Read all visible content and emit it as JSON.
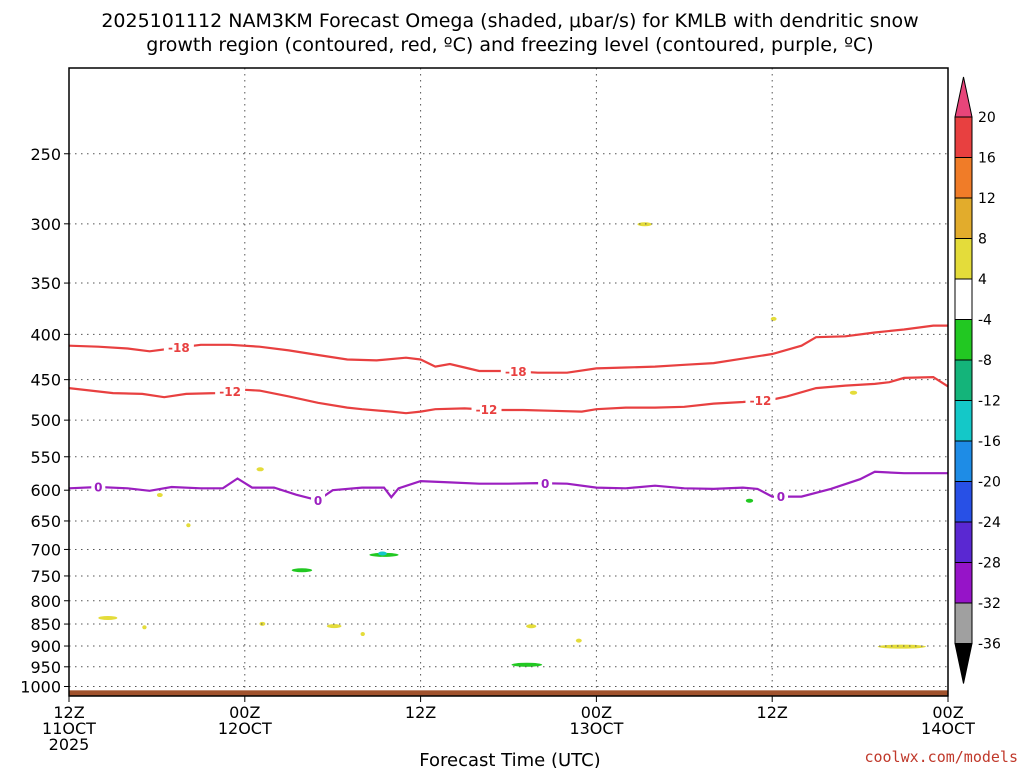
{
  "title_line1": "2025101112 NAM3KM Forecast Omega (shaded, μbar/s) for KMLB with dendritic snow",
  "title_line2": "growth region (contoured, red, ºC) and freezing level (contoured, purple, ºC)",
  "credit": "coolwx.com/models",
  "credit_color": "#c0392b",
  "chart_data": {
    "type": "heatmap",
    "xlabel": "Forecast Time (UTC)",
    "xlim": [
      0,
      60
    ],
    "x_unit": "forecast hours",
    "x_ticks": [
      {
        "x": 0,
        "line1": "12Z",
        "line2": "11OCT",
        "line3": "2025"
      },
      {
        "x": 12,
        "line1": "00Z",
        "line2": "12OCT",
        "line3": ""
      },
      {
        "x": 24,
        "line1": "12Z",
        "line2": "",
        "line3": ""
      },
      {
        "x": 36,
        "line1": "00Z",
        "line2": "13OCT",
        "line3": ""
      },
      {
        "x": 48,
        "line1": "12Z",
        "line2": "",
        "line3": ""
      },
      {
        "x": 60,
        "line1": "00Z",
        "line2": "14OCT",
        "line3": ""
      }
    ],
    "y_unit": "hPa",
    "y_scale": "log-pressure",
    "ylim": [
      1025,
      200
    ],
    "y_ticks": [
      250,
      300,
      350,
      400,
      450,
      500,
      550,
      600,
      650,
      700,
      750,
      800,
      850,
      900,
      950,
      1000
    ],
    "grid": true,
    "colorbar": {
      "labels": [
        "20",
        "16",
        "12",
        "8",
        "4",
        "-4",
        "-8",
        "-12",
        "-16",
        "-20",
        "-24",
        "-28",
        "-32",
        "-36"
      ],
      "colors": [
        "#e8457a",
        "#e84040",
        "#f07c28",
        "#e2ac2c",
        "#e4dc3a",
        "#ffffff",
        "#22c822",
        "#14b47a",
        "#14c8c8",
        "#1e8ce6",
        "#2850e6",
        "#5a28d2",
        "#9614c8",
        "#a0a0a0",
        "#000000"
      ]
    },
    "surface": {
      "pressure": 1010,
      "color": "#a0522d"
    },
    "series": [
      {
        "label": "-18",
        "color": "#e84040",
        "label_at": [
          7.5,
          30.5
        ],
        "points": [
          [
            0,
            412
          ],
          [
            2,
            413
          ],
          [
            4,
            415
          ],
          [
            5.5,
            418
          ],
          [
            7,
            415
          ],
          [
            9,
            411
          ],
          [
            11,
            411
          ],
          [
            13,
            413
          ],
          [
            15,
            417
          ],
          [
            17,
            422
          ],
          [
            19,
            427
          ],
          [
            21,
            428
          ],
          [
            23,
            425
          ],
          [
            24,
            427
          ],
          [
            25,
            435
          ],
          [
            26,
            432
          ],
          [
            27,
            436
          ],
          [
            28,
            440
          ],
          [
            30,
            440
          ],
          [
            32,
            442
          ],
          [
            34,
            442
          ],
          [
            36,
            437
          ],
          [
            38,
            436
          ],
          [
            40,
            435
          ],
          [
            42,
            433
          ],
          [
            44,
            431
          ],
          [
            46,
            426
          ],
          [
            48,
            421
          ],
          [
            50,
            412
          ],
          [
            51,
            403
          ],
          [
            53,
            402
          ],
          [
            55,
            398
          ],
          [
            57,
            395
          ],
          [
            59,
            391
          ],
          [
            60,
            391
          ]
        ]
      },
      {
        "label": "-12",
        "color": "#e84040",
        "label_at": [
          11,
          28.5,
          47.2
        ],
        "points": [
          [
            0,
            460
          ],
          [
            3,
            466
          ],
          [
            5,
            467
          ],
          [
            6.5,
            471
          ],
          [
            8,
            467
          ],
          [
            10,
            466
          ],
          [
            12,
            462
          ],
          [
            13,
            463
          ],
          [
            15,
            470
          ],
          [
            17,
            478
          ],
          [
            19,
            484
          ],
          [
            20,
            486
          ],
          [
            22,
            489
          ],
          [
            23,
            491
          ],
          [
            24,
            489
          ],
          [
            25,
            486
          ],
          [
            27,
            485
          ],
          [
            29,
            487
          ],
          [
            31,
            487
          ],
          [
            33,
            488
          ],
          [
            35,
            489
          ],
          [
            36,
            486
          ],
          [
            38,
            484
          ],
          [
            40,
            484
          ],
          [
            42,
            483
          ],
          [
            44,
            479
          ],
          [
            46,
            477
          ],
          [
            48,
            474
          ],
          [
            49,
            470
          ],
          [
            51,
            460
          ],
          [
            53,
            457
          ],
          [
            55,
            455
          ],
          [
            56,
            453
          ],
          [
            57,
            448
          ],
          [
            59,
            447
          ],
          [
            60,
            458
          ]
        ]
      },
      {
        "label": "0",
        "color": "#9b1fc0",
        "label_at": [
          2,
          17,
          32.5,
          48.6
        ],
        "points": [
          [
            0,
            597
          ],
          [
            2,
            595
          ],
          [
            4,
            597
          ],
          [
            5.5,
            601
          ],
          [
            7,
            595
          ],
          [
            9,
            597
          ],
          [
            10.5,
            597
          ],
          [
            11.5,
            582
          ],
          [
            12.5,
            596
          ],
          [
            14,
            596
          ],
          [
            15.5,
            607
          ],
          [
            17,
            616
          ],
          [
            18,
            600
          ],
          [
            20,
            596
          ],
          [
            21.5,
            596
          ],
          [
            22,
            611
          ],
          [
            22.5,
            597
          ],
          [
            24,
            586
          ],
          [
            26,
            588
          ],
          [
            28,
            590
          ],
          [
            30,
            590
          ],
          [
            32,
            589
          ],
          [
            34,
            590
          ],
          [
            36,
            596
          ],
          [
            38,
            597
          ],
          [
            40,
            593
          ],
          [
            42,
            597
          ],
          [
            44,
            598
          ],
          [
            46,
            596
          ],
          [
            47,
            598
          ],
          [
            48,
            610
          ],
          [
            50,
            610
          ],
          [
            52,
            598
          ],
          [
            54,
            583
          ],
          [
            55,
            572
          ],
          [
            57,
            574
          ],
          [
            59,
            574
          ],
          [
            60,
            574
          ]
        ]
      }
    ],
    "omega_regions": [
      {
        "value_range": [
          4,
          8
        ],
        "color": "#e4dc3a",
        "x_range": [
          6,
          6.4
        ],
        "p_range": [
          520,
          710
        ]
      },
      {
        "value_range": [
          4,
          8
        ],
        "color": "#e4dc3a",
        "x_range": [
          8,
          8.3
        ],
        "p_range": [
          600,
          720
        ]
      },
      {
        "value_range": [
          4,
          8
        ],
        "color": "#e4dc3a",
        "x_range": [
          12.8,
          13.3
        ],
        "p_range": [
          525,
          615
        ]
      },
      {
        "value_range": [
          4,
          8
        ],
        "color": "#e4dc3a",
        "x_range": [
          2,
          3.3
        ],
        "p_range": [
          765,
          915
        ]
      },
      {
        "value_range": [
          4,
          8
        ],
        "color": "#e4dc3a",
        "x_range": [
          5,
          5.3
        ],
        "p_range": [
          835,
          880
        ]
      },
      {
        "value_range": [
          4,
          8
        ],
        "color": "#e4dc3a",
        "x_range": [
          13,
          13.4
        ],
        "p_range": [
          820,
          880
        ]
      },
      {
        "value_range": [
          4,
          8
        ],
        "color": "#e4dc3a",
        "x_range": [
          17.6,
          18.6
        ],
        "p_range": [
          830,
          880
        ]
      },
      {
        "value_range": [
          4,
          8
        ],
        "color": "#e4dc3a",
        "x_range": [
          19.9,
          20.2
        ],
        "p_range": [
          860,
          885
        ]
      },
      {
        "value_range": [
          4,
          8
        ],
        "color": "#e4dc3a",
        "x_range": [
          31.2,
          31.9
        ],
        "p_range": [
          840,
          870
        ]
      },
      {
        "value_range": [
          4,
          8
        ],
        "color": "#e4dc3a",
        "x_range": [
          34.6,
          35
        ],
        "p_range": [
          880,
          895
        ]
      },
      {
        "value_range": [
          4,
          8
        ],
        "color": "#e4dc3a",
        "x_range": [
          38.8,
          39.8
        ],
        "p_range": [
          275,
          328
        ]
      },
      {
        "value_range": [
          4,
          8
        ],
        "color": "#e4dc3a",
        "x_range": [
          47.9,
          48.3
        ],
        "p_range": [
          360,
          410
        ]
      },
      {
        "value_range": [
          4,
          8
        ],
        "color": "#e4dc3a",
        "x_range": [
          53.3,
          53.8
        ],
        "p_range": [
          425,
          510
        ]
      },
      {
        "value_range": [
          4,
          8
        ],
        "color": "#e4dc3a",
        "x_range": [
          55.2,
          58.5
        ],
        "p_range": [
          860,
          945
        ]
      },
      {
        "value_range": [
          -8,
          -4
        ],
        "color": "#22c822",
        "x_range": [
          15.2,
          16.6
        ],
        "p_range": [
          700,
          780
        ]
      },
      {
        "value_range": [
          -8,
          -4
        ],
        "color": "#22c822",
        "x_range": [
          20.5,
          22.5
        ],
        "p_range": [
          630,
          800
        ]
      },
      {
        "value_range": [
          -8,
          -4
        ],
        "color": "#22c822",
        "x_range": [
          30.2,
          32.3
        ],
        "p_range": [
          935,
          955
        ]
      },
      {
        "value_range": [
          -8,
          -4
        ],
        "color": "#22c822",
        "x_range": [
          46.2,
          46.7
        ],
        "p_range": [
          585,
          650
        ]
      },
      {
        "value_range": [
          -16,
          -8
        ],
        "color": "#14c8c8",
        "x_range": [
          21.1,
          21.7
        ],
        "p_range": [
          650,
          770
        ]
      }
    ]
  }
}
